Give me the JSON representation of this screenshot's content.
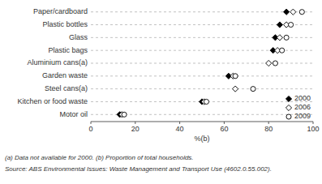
{
  "chart_data": {
    "type": "dot",
    "orientation": "horizontal",
    "categories": [
      "Paper/cardboard",
      "Plastic bottles",
      "Glass",
      "Plastic bags",
      "Aluminium cans(a)",
      "Garden waste",
      "Steel cans(a)",
      "Kitchen or food waste",
      "Motor oil"
    ],
    "series": [
      {
        "name": "2000",
        "marker": "diamond",
        "color": "#000000",
        "values": [
          88,
          85,
          83,
          82,
          null,
          62,
          null,
          50,
          13
        ]
      },
      {
        "name": "2006",
        "marker": "diamond-open",
        "color": "#000000",
        "values": [
          91,
          88,
          85,
          84,
          80,
          64,
          65,
          51,
          14
        ]
      },
      {
        "name": "2009",
        "marker": "circle-open",
        "color": "#000000",
        "values": [
          95,
          90,
          88,
          86,
          83,
          65,
          73,
          52,
          15
        ]
      }
    ],
    "xlim": [
      0,
      100
    ],
    "xticks": [
      0,
      20,
      40,
      60,
      80,
      100
    ],
    "xlabel": "%(b)",
    "grid": true,
    "legend": "lower right",
    "annotations": [
      "(a) Data not available for 2000.   (b) Proportion of total households.",
      "Source: ABS Environmental Issues: Waste Management and Transport Use (4602.0.55.002)."
    ]
  }
}
